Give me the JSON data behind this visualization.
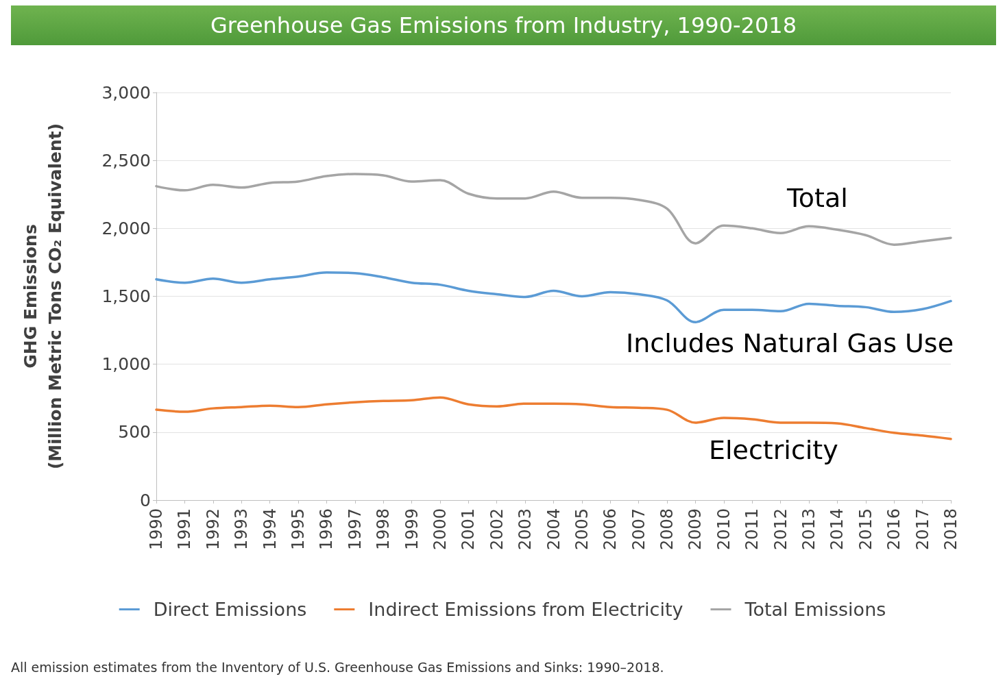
{
  "chart_data": {
    "type": "line",
    "title": "Greenhouse Gas Emissions from Industry, 1990-2018",
    "ylabel": "GHG Emissions\n(Million Metric Tons CO₂ Equivalent)",
    "categories": [
      "1990",
      "1991",
      "1992",
      "1993",
      "1994",
      "1995",
      "1996",
      "1997",
      "1998",
      "1999",
      "2000",
      "2001",
      "2002",
      "2003",
      "2004",
      "2005",
      "2006",
      "2007",
      "2008",
      "2009",
      "2010",
      "2011",
      "2012",
      "2013",
      "2014",
      "2015",
      "2016",
      "2017",
      "2018"
    ],
    "series": [
      {
        "name": "Direct Emissions",
        "color": "#5b9bd5",
        "values": [
          1625,
          1600,
          1630,
          1600,
          1625,
          1645,
          1675,
          1670,
          1640,
          1600,
          1585,
          1540,
          1515,
          1495,
          1540,
          1500,
          1530,
          1515,
          1470,
          1310,
          1400,
          1400,
          1390,
          1445,
          1430,
          1420,
          1385,
          1405,
          1465
        ]
      },
      {
        "name": "Indirect Emissions from Electricity",
        "color": "#ed7d31",
        "values": [
          665,
          650,
          675,
          685,
          695,
          685,
          705,
          720,
          730,
          735,
          755,
          705,
          690,
          710,
          710,
          705,
          685,
          680,
          665,
          570,
          605,
          595,
          570,
          570,
          565,
          530,
          495,
          475,
          450
        ]
      },
      {
        "name": "Total Emissions",
        "color": "#a5a5a5",
        "values": [
          2310,
          2280,
          2320,
          2300,
          2335,
          2345,
          2385,
          2400,
          2390,
          2345,
          2355,
          2255,
          2220,
          2220,
          2270,
          2225,
          2225,
          2210,
          2145,
          1890,
          2020,
          2000,
          1965,
          2015,
          1990,
          1950,
          1880,
          1905,
          1930
        ]
      }
    ],
    "ylim": [
      0,
      3000
    ],
    "yticks": [
      0,
      500,
      {
        "value": 1000,
        "label": "1,000"
      },
      {
        "value": 1500,
        "label": "1,500"
      },
      {
        "value": 2000,
        "label": "2,000"
      },
      {
        "value": 2500,
        "label": "2,500"
      },
      {
        "value": 3000,
        "label": "3,000"
      }
    ],
    "grid": "y",
    "legend": "bottom",
    "marker": "none",
    "line_style": "solid",
    "annotations": [
      "Total",
      "Includes Natural Gas Use",
      "Electricity",
      "All emission estimates from the Inventory of U.S. Greenhouse Gas Emissions and Sinks: 1990–2018."
    ]
  }
}
